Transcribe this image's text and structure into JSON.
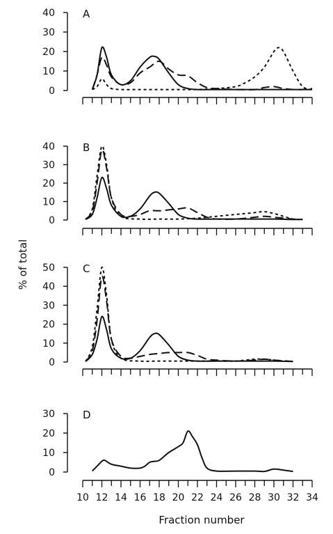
{
  "chart_data": {
    "type": "line",
    "ylabel": "% of total",
    "xlabel": "Fraction number",
    "grid": false,
    "legend": "none",
    "x_range": [
      10,
      34
    ],
    "x_ticks": [
      10,
      12,
      14,
      16,
      18,
      20,
      22,
      24,
      26,
      28,
      30,
      32,
      34
    ],
    "panels": [
      {
        "label": "A",
        "ylim": [
          0,
          40
        ],
        "y_ticks": [
          0,
          10,
          20,
          30,
          40
        ],
        "series": [
          {
            "style": "solid",
            "x": [
              11,
              11.5,
              12,
              12.5,
              13,
              14,
              15,
              16,
              17,
              17.5,
              18,
              19,
              20,
              21,
              22,
              24,
              26,
              28,
              30,
              32,
              34
            ],
            "y": [
              0.5,
              8,
              22,
              17,
              8,
              3,
              5,
              12,
              17,
              17.5,
              16,
              9,
              3,
              1,
              0.5,
              0.5,
              0.5,
              0.5,
              0.5,
              0.5,
              0.5
            ]
          },
          {
            "style": "long-dash",
            "x": [
              11,
              11.5,
              12,
              12.5,
              13,
              14,
              15,
              16,
              17,
              18,
              19,
              20,
              21,
              22,
              23,
              24,
              26,
              28,
              29,
              30,
              31,
              32,
              33,
              34
            ],
            "y": [
              0.5,
              8,
              17,
              13,
              7,
              3,
              4,
              9,
              12,
              15,
              11,
              8,
              7.5,
              4,
              1.5,
              1,
              0.5,
              0.5,
              1.5,
              2,
              1,
              0.5,
              0.5,
              1
            ]
          },
          {
            "style": "short-dash",
            "x": [
              11,
              11.5,
              12,
              12.5,
              13,
              14,
              16,
              18,
              20,
              22,
              24,
              26,
              27,
              28,
              29,
              30,
              30.5,
              31,
              32,
              33,
              34
            ],
            "y": [
              0.5,
              2,
              6,
              3,
              1,
              0.5,
              0.5,
              0.5,
              0.5,
              0.5,
              1,
              2,
              4,
              7,
              12,
              20,
              22,
              20,
              10,
              2,
              0.5
            ]
          }
        ]
      },
      {
        "label": "B",
        "ylim": [
          0,
          40
        ],
        "y_ticks": [
          0,
          10,
          20,
          30,
          40
        ],
        "series": [
          {
            "style": "solid",
            "x": [
              10.3,
              11,
              11.5,
              12,
              12.5,
              13,
              14,
              15,
              16,
              17,
              17.5,
              18,
              19,
              20,
              21,
              22,
              24,
              26,
              28,
              30,
              32,
              33
            ],
            "y": [
              0.3,
              3,
              12,
              23,
              17,
              8,
              2,
              2,
              6,
              13,
              15,
              14.5,
              9,
              3,
              1,
              0.5,
              0.5,
              0.5,
              0.5,
              0.5,
              0.3,
              0.3
            ]
          },
          {
            "style": "long-dash",
            "x": [
              10.3,
              11,
              11.5,
              12,
              12.5,
              13,
              14,
              15,
              16,
              17,
              18,
              19,
              20,
              21,
              22,
              23,
              24,
              26,
              28,
              29,
              30,
              32,
              33
            ],
            "y": [
              0.3,
              5,
              20,
              38,
              28,
              12,
              3,
              2,
              3,
              5,
              5,
              5.5,
              6,
              6.5,
              4,
              1.5,
              0.5,
              0.5,
              1.5,
              2,
              1.5,
              0.5,
              0.3
            ]
          },
          {
            "style": "short-dash",
            "x": [
              10.3,
              11,
              11.5,
              12,
              12.5,
              13,
              14,
              16,
              18,
              20,
              22,
              24,
              26,
              27,
              28,
              29,
              30,
              31,
              32,
              33
            ],
            "y": [
              0.3,
              6,
              24,
              40,
              30,
              12,
              2,
              0.5,
              0.5,
              0.5,
              1,
              2,
              3,
              3.5,
              4,
              4.5,
              3.5,
              2,
              0.5,
              0.3
            ]
          }
        ]
      },
      {
        "label": "C",
        "ylim": [
          0,
          50
        ],
        "y_ticks": [
          0,
          10,
          20,
          30,
          40,
          50
        ],
        "series": [
          {
            "style": "solid",
            "x": [
              10.3,
              11,
              11.5,
              12,
              12.5,
              13,
              14,
              15,
              16,
              17,
              17.5,
              18,
              19,
              20,
              21,
              22,
              24,
              26,
              28,
              30,
              32
            ],
            "y": [
              0.3,
              4,
              12,
              24,
              17,
              7,
              2,
              2,
              6,
              13,
              15,
              14.5,
              9,
              3,
              1,
              0.5,
              0.5,
              0.5,
              0.5,
              0.5,
              0.3
            ]
          },
          {
            "style": "long-dash",
            "x": [
              10.3,
              11,
              11.5,
              12,
              12.5,
              13,
              14,
              15,
              16,
              17,
              18,
              19,
              20,
              21,
              22,
              23,
              24,
              26,
              28,
              29,
              30,
              32
            ],
            "y": [
              0.3,
              6,
              22,
              45,
              32,
              12,
              3,
              2,
              3,
              4,
              4.5,
              5,
              5,
              5,
              3.5,
              1.5,
              1,
              0.5,
              1,
              1.5,
              1,
              0.3
            ]
          },
          {
            "style": "short-dash",
            "x": [
              10.3,
              11,
              11.5,
              12,
              12.5,
              13,
              14,
              16,
              18,
              20,
              22,
              24,
              26,
              27,
              28,
              29,
              30,
              31,
              32
            ],
            "y": [
              0.3,
              8,
              28,
              50,
              35,
              12,
              2,
              0.5,
              0.5,
              0.5,
              0.5,
              0.5,
              0.5,
              1,
              1.5,
              1.5,
              1,
              0.5,
              0.3
            ]
          }
        ]
      },
      {
        "label": "D",
        "ylim": [
          0,
          30
        ],
        "y_ticks": [
          0,
          10,
          20,
          30
        ],
        "series": [
          {
            "style": "solid",
            "x": [
              11,
              11.5,
              12,
              12.3,
              13,
              14,
              15,
              16,
              16.5,
              17,
              17.5,
              18,
              19,
              20,
              20.5,
              21,
              21.5,
              22,
              22.5,
              23,
              24,
              26,
              28,
              29,
              30,
              31,
              32
            ],
            "y": [
              0.5,
              3,
              5.5,
              6,
              4,
              3,
              2,
              2,
              3,
              5,
              5.5,
              6,
              10,
              13,
              15,
              21,
              18,
              14,
              7,
              2,
              0.5,
              0.5,
              0.5,
              0.3,
              1.5,
              1,
              0.3
            ]
          }
        ]
      }
    ]
  }
}
